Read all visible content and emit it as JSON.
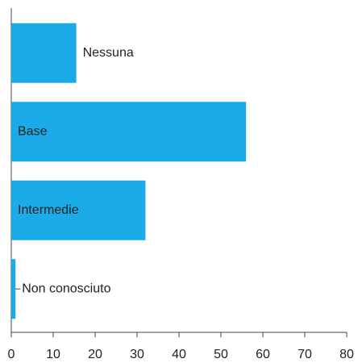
{
  "chart_data": {
    "type": "bar",
    "orientation": "horizontal",
    "categories": [
      "Nessuna",
      "Base",
      "Intermedie",
      "Non conosciuto"
    ],
    "values": [
      15.5,
      56,
      32,
      1
    ],
    "color": "#1aabe8",
    "xlim": [
      0,
      80
    ],
    "xticks": [
      0,
      10,
      20,
      30,
      40,
      50,
      60,
      70,
      80
    ],
    "grid": false
  }
}
